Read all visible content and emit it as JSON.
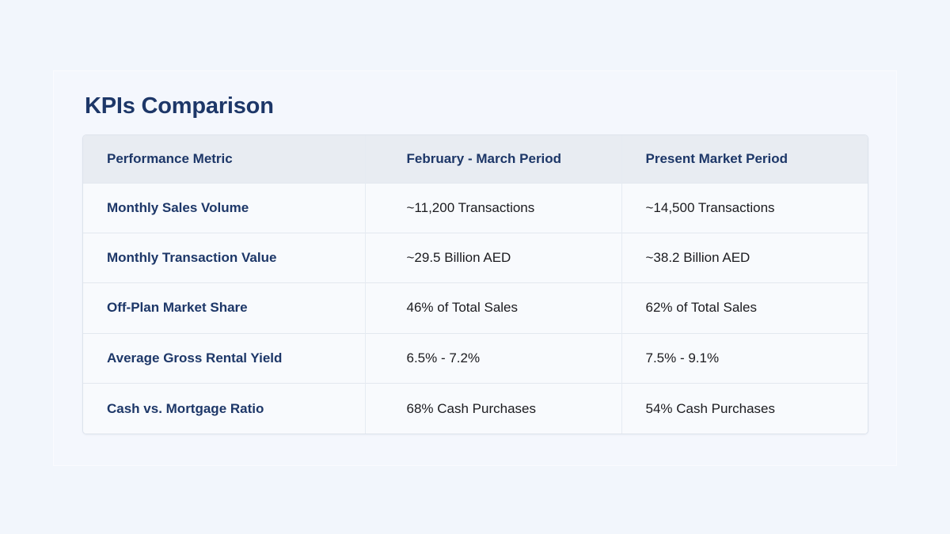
{
  "title": "KPIs Comparison",
  "table": {
    "headers": [
      "Performance Metric",
      "February - March Period",
      "Present Market Period"
    ],
    "rows": [
      [
        "Monthly Sales Volume",
        "~11,200 Transactions",
        "~14,500 Transactions"
      ],
      [
        "Monthly Transaction Value",
        "~29.5 Billion AED",
        "~38.2 Billion AED"
      ],
      [
        "Off-Plan Market Share",
        "46% of Total Sales",
        "62% of Total Sales"
      ],
      [
        "Average Gross Rental Yield",
        "6.5% - 7.2%",
        "7.5% - 9.1%"
      ],
      [
        "Cash vs. Mortgage Ratio",
        "68% Cash Purchases",
        "54% Cash Purchases"
      ]
    ]
  },
  "colors": {
    "background": "#f2f6fc",
    "title": "#1d3768",
    "header_bg": "#e8ecf2",
    "body_text": "#1b1b1f"
  }
}
